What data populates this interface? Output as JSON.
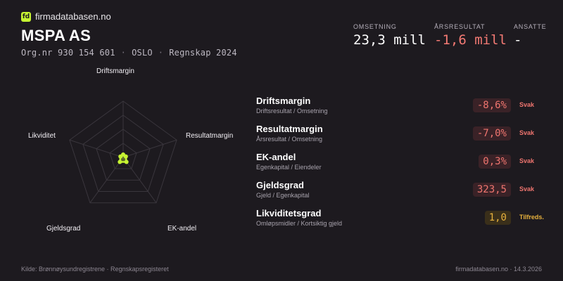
{
  "brand": {
    "logo_text": "fd",
    "name": "firmadatabasen.no"
  },
  "company": {
    "name": "MSPA AS",
    "orgnr": "Org.nr 930 154 601",
    "city": "OSLO",
    "accounts": "Regnskap 2024",
    "separator": "·"
  },
  "kpis": [
    {
      "label": "OMSETNING",
      "value": "23,3 mill",
      "negative": false
    },
    {
      "label": "ÅRSRESULTAT",
      "value": "-1,6 mill",
      "negative": true
    },
    {
      "label": "ANSATTE",
      "value": "-",
      "negative": false
    }
  ],
  "radar": {
    "axes": [
      "Driftsmargin",
      "Resultatmargin",
      "EK-andel",
      "Gjeldsgrad",
      "Likviditet"
    ],
    "levels": 4,
    "max": 1.0,
    "scores": [
      0.05,
      0.05,
      0.1,
      0.1,
      0.05
    ],
    "accent": "#c6f432"
  },
  "metrics": [
    {
      "name": "Driftsmargin",
      "sub": "Driftsresultat / Omsetning",
      "value": "-8,6%",
      "status": "Svak",
      "level": "weak"
    },
    {
      "name": "Resultatmargin",
      "sub": "Årsresultat / Omsetning",
      "value": "-7,0%",
      "status": "Svak",
      "level": "weak"
    },
    {
      "name": "EK-andel",
      "sub": "Egenkapital / Eiendeler",
      "value": "0,3%",
      "status": "Svak",
      "level": "weak"
    },
    {
      "name": "Gjeldsgrad",
      "sub": "Gjeld / Egenkapital",
      "value": "323,5",
      "status": "Svak",
      "level": "weak"
    },
    {
      "name": "Likviditetsgrad",
      "sub": "Omløpsmidler / Kortsiktig gjeld",
      "value": "1,0",
      "status": "Tilfreds.",
      "level": "ok"
    }
  ],
  "footer": {
    "source": "Kilde: Brønnøysundregistrene · Regnskapsregisteret",
    "site_date": "firmadatabasen.no · 14.3.2026"
  },
  "colors": {
    "background": "#1d1a1f",
    "accent": "#c6f432",
    "negative": "#f47a74",
    "warning": "#e8b23d"
  }
}
